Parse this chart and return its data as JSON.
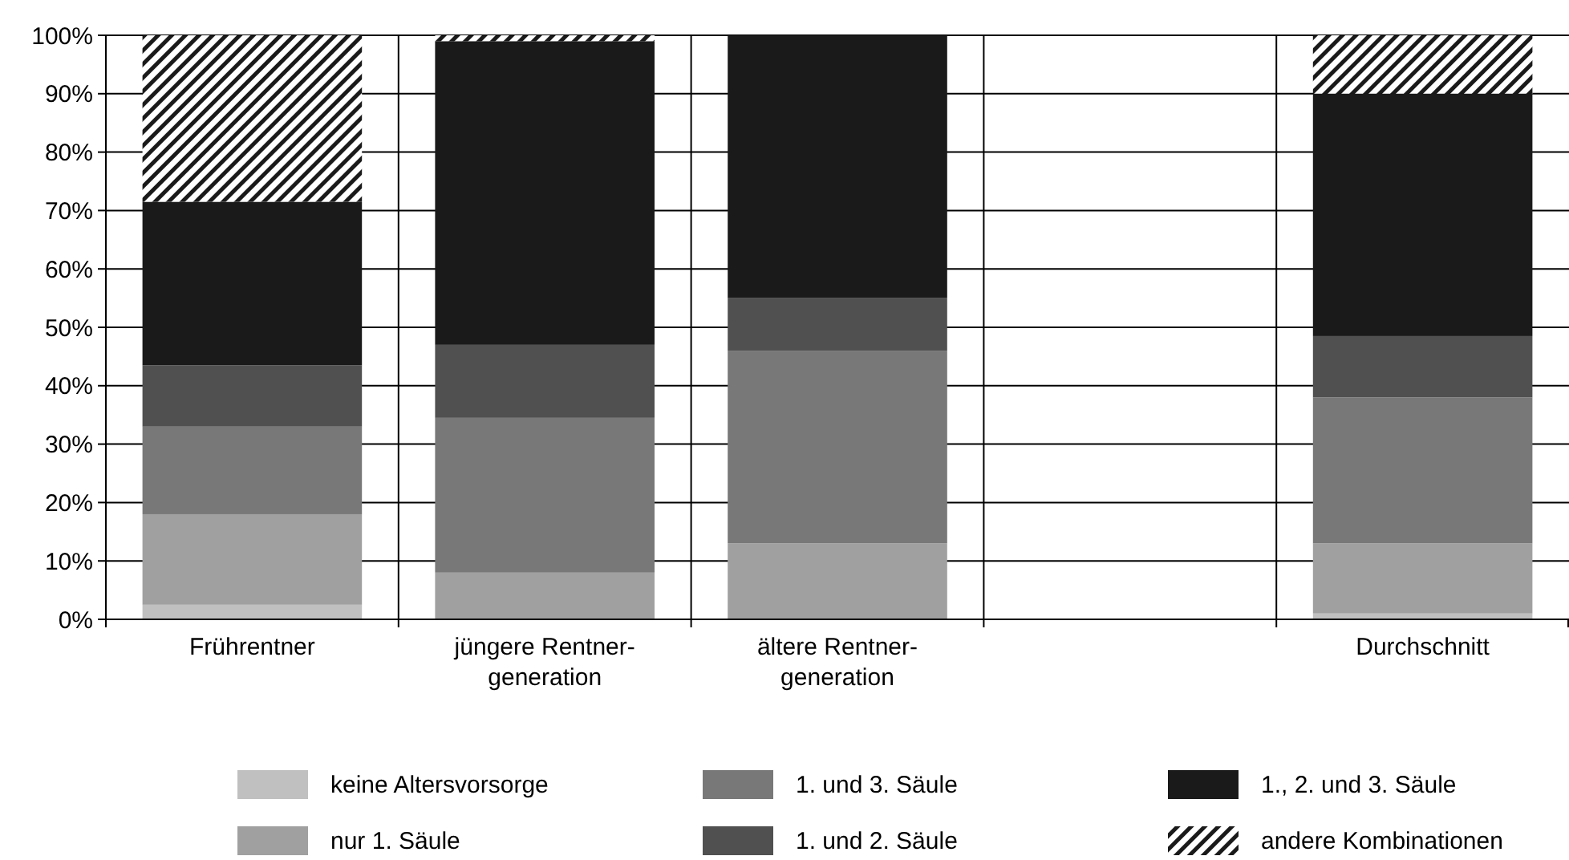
{
  "chart_data": {
    "type": "bar",
    "stacked": true,
    "categories": [
      "Frührentner",
      "jüngere Rentner-\ngeneration",
      "ältere Rentner-\ngeneration",
      null,
      "Durchschnitt"
    ],
    "series": [
      {
        "name": "keine Altersvorsorge",
        "color": "#c0c0c0",
        "values": [
          2.5,
          0,
          0,
          null,
          1
        ]
      },
      {
        "name": "nur 1. Säule",
        "color": "#a0a0a0",
        "values": [
          15.5,
          8,
          13,
          null,
          12
        ]
      },
      {
        "name": "1. und 3. Säule",
        "color": "#787878",
        "values": [
          15,
          26.5,
          33,
          null,
          25
        ]
      },
      {
        "name": "1. und 2. Säule",
        "color": "#505050",
        "values": [
          10.5,
          12.5,
          9,
          null,
          10.5
        ]
      },
      {
        "name": "1., 2. und 3. Säule",
        "color": "#1a1a1a",
        "values": [
          28,
          52,
          45,
          null,
          41.5
        ]
      },
      {
        "name": "andere Kombinationen",
        "color": "#1a1a1a",
        "values": [
          28.5,
          1,
          0,
          null,
          10
        ]
      }
    ],
    "ylim": [
      0,
      100
    ],
    "yticks": [
      {
        "value": 0,
        "label": "0%"
      },
      {
        "value": 10,
        "label": "10%"
      },
      {
        "value": 20,
        "label": "20%"
      },
      {
        "value": 30,
        "label": "30%"
      },
      {
        "value": 40,
        "label": "40%"
      },
      {
        "value": 50,
        "label": "50%"
      },
      {
        "value": 60,
        "label": "60%"
      },
      {
        "value": 70,
        "label": "70%"
      },
      {
        "value": 80,
        "label": "80%"
      },
      {
        "value": 90,
        "label": "90%"
      },
      {
        "value": 100,
        "label": "100%"
      }
    ],
    "grid": true,
    "legend": "bottom"
  }
}
